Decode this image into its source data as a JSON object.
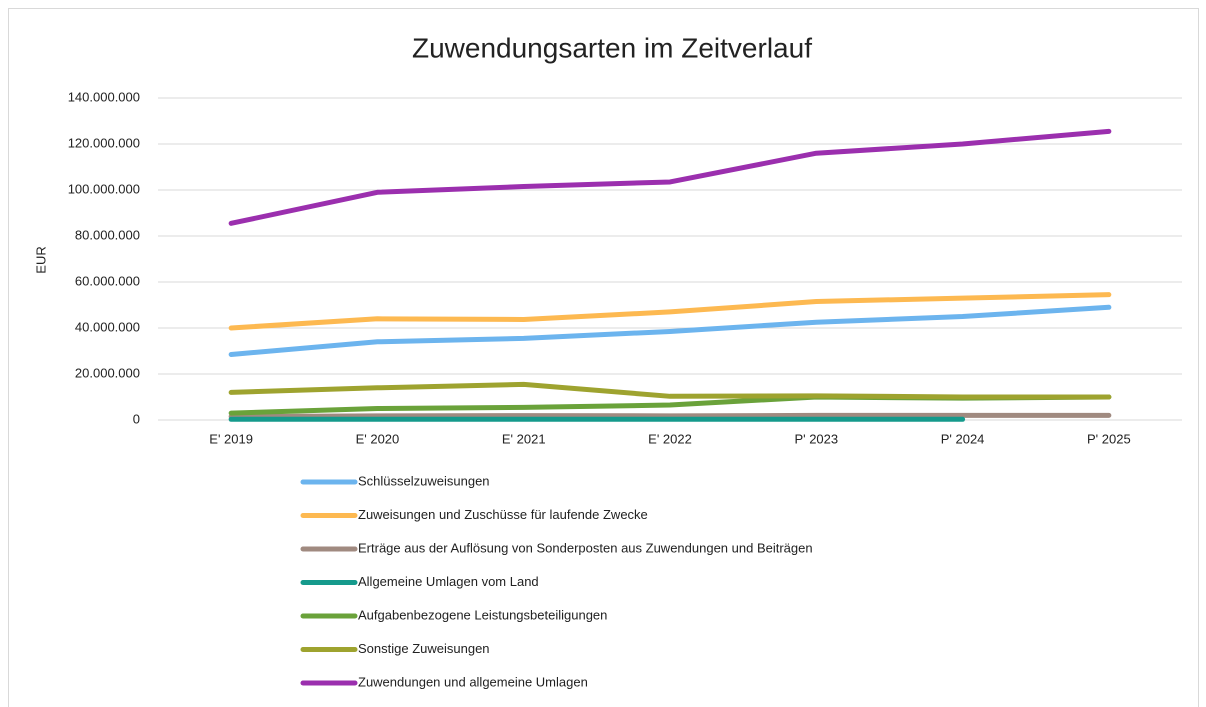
{
  "chart_data": {
    "type": "line",
    "title": "Zuwendungsarten im Zeitverlauf",
    "y_label": "EUR",
    "categories": [
      "E' 2019",
      "E' 2020",
      "E' 2021",
      "E' 2022",
      "P' 2023",
      "P' 2024",
      "P' 2025"
    ],
    "series": [
      {
        "name": "Schlüsselzuweisungen",
        "color": "#6cb4ee",
        "values": [
          28500000,
          34000000,
          35500000,
          38500000,
          42500000,
          45000000,
          49000000
        ]
      },
      {
        "name": "Zuweisungen und Zuschüsse für laufende Zwecke",
        "color": "#fdb951",
        "values": [
          40000000,
          44000000,
          43700000,
          47000000,
          51500000,
          53000000,
          54500000
        ]
      },
      {
        "name": "Erträge aus der Auflösung von Sonderposten aus Zuwendungen und Beiträgen",
        "color": "#a08a80",
        "values": [
          1500000,
          1800000,
          1900000,
          1800000,
          2000000,
          2000000,
          2000000
        ]
      },
      {
        "name": "Allgemeine Umlagen vom Land",
        "color": "#159a8c",
        "values": [
          300000,
          300000,
          300000,
          300000,
          300000,
          300000,
          null
        ]
      },
      {
        "name": "Aufgabenbezogene Leistungsbeteiligungen",
        "color": "#6aa23a",
        "values": [
          3000000,
          5000000,
          5500000,
          6500000,
          10000000,
          9500000,
          10000000
        ]
      },
      {
        "name": "Sonstige Zuweisungen",
        "color": "#9ea32f",
        "values": [
          12000000,
          14000000,
          15500000,
          10300000,
          10500000,
          10000000,
          10000000
        ]
      },
      {
        "name": "Zuwendungen und allgemeine Umlagen",
        "color": "#9b2fae",
        "values": [
          85500000,
          99000000,
          101500000,
          103500000,
          116000000,
          120000000,
          125500000
        ]
      }
    ],
    "ylim": [
      0,
      140000000
    ],
    "yticks": [
      0,
      {
        "value": 20000000,
        "label": "20.000.000"
      },
      {
        "value": 40000000,
        "label": "40.000.000"
      },
      {
        "value": 60000000,
        "label": "60.000.000"
      },
      {
        "value": 80000000,
        "label": "80.000.000"
      },
      {
        "value": 100000000,
        "label": "100.000.000"
      },
      {
        "value": 120000000,
        "label": "120.000.000"
      },
      {
        "value": 140000000,
        "label": "140.000.000"
      }
    ],
    "grid": true
  }
}
